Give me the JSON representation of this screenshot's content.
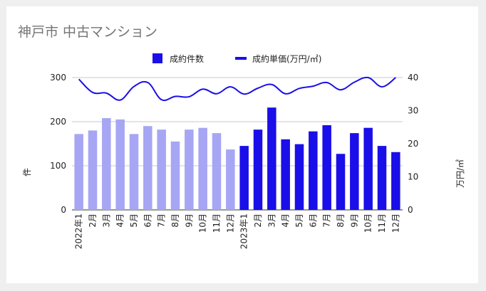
{
  "chart_data": {
    "type": "bar",
    "title": "神戸市 中古マンション",
    "categories": [
      "2022年1",
      "2月",
      "3月",
      "4月",
      "5月",
      "6月",
      "7月",
      "8月",
      "9月",
      "10月",
      "11月",
      "12月",
      "2023年1",
      "2月",
      "3月",
      "4月",
      "5月",
      "6月",
      "7月",
      "8月",
      "9月",
      "10月",
      "11月",
      "12月"
    ],
    "series": [
      {
        "name": "成約件数",
        "type": "bar",
        "axis": "left",
        "values": [
          172,
          180,
          208,
          205,
          172,
          190,
          182,
          155,
          182,
          186,
          174,
          137,
          145,
          182,
          232,
          160,
          149,
          178,
          192,
          127,
          174,
          186,
          145,
          131
        ]
      },
      {
        "name": "成約単価(万円/㎡)",
        "type": "line",
        "axis": "right",
        "values": [
          39.5,
          35.5,
          35.3,
          33.2,
          37.3,
          38.5,
          33.3,
          34.3,
          34.2,
          36.5,
          35.1,
          37.2,
          35.0,
          36.8,
          37.9,
          35.1,
          36.7,
          37.4,
          38.5,
          36.3,
          38.6,
          40.0,
          37.2,
          40.0
        ]
      }
    ],
    "ylabel": "件",
    "y2label": "万円/㎡",
    "ylim": [
      0,
      300
    ],
    "y2lim": [
      0,
      40
    ],
    "yticks": [
      0,
      100,
      200,
      300
    ],
    "y2ticks": [
      0,
      10,
      20,
      30,
      40
    ],
    "grid": true,
    "legend_position": "top",
    "colors": {
      "bar_2022": "#a6a6f4",
      "bar_2023": "#1a0fe8",
      "line": "#1a0fe8",
      "grid": "#c9c9c9",
      "baseline": "#333333"
    }
  }
}
